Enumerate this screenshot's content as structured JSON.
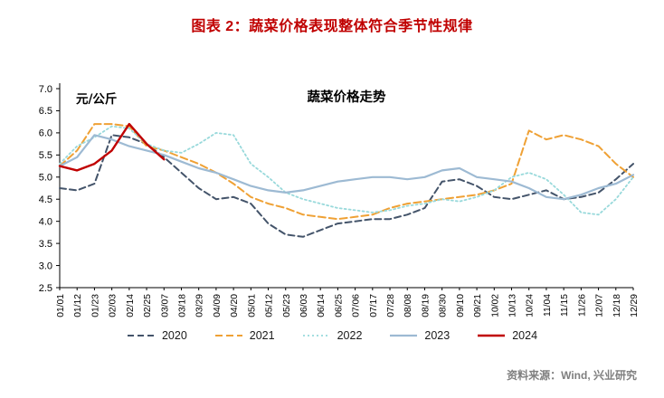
{
  "page": {
    "caption": "图表 2：蔬菜价格表现整体符合季节性规律",
    "source": "资料来源：Wind, 兴业研究"
  },
  "colors": {
    "caption": "#C00000",
    "source": "#7F7F7F",
    "axis": "#000000"
  },
  "chart_data": {
    "type": "line",
    "title": "蔬菜价格走势",
    "unit_label": "元/公斤",
    "xlabel": "",
    "ylabel": "",
    "ylim": [
      2.5,
      7.0
    ],
    "ytick_step": 0.5,
    "grid": false,
    "legend_position": "bottom",
    "categories": [
      "01/01",
      "01/12",
      "01/23",
      "02/03",
      "02/14",
      "02/25",
      "03/07",
      "03/18",
      "03/29",
      "04/09",
      "04/20",
      "05/01",
      "05/12",
      "05/23",
      "06/03",
      "06/14",
      "06/25",
      "07/06",
      "07/17",
      "07/28",
      "08/08",
      "08/19",
      "08/30",
      "09/10",
      "09/21",
      "10/02",
      "10/13",
      "10/24",
      "11/04",
      "11/15",
      "11/26",
      "12/07",
      "12/18",
      "12/29"
    ],
    "series": [
      {
        "name": "2020",
        "color": "#44546A",
        "dash": "7 4",
        "width": 2,
        "values": [
          4.75,
          4.7,
          4.85,
          5.95,
          5.9,
          5.75,
          5.45,
          5.1,
          4.75,
          4.5,
          4.55,
          4.4,
          3.95,
          3.7,
          3.65,
          3.8,
          3.95,
          4.0,
          4.05,
          4.05,
          4.15,
          4.3,
          4.9,
          4.95,
          4.8,
          4.55,
          4.5,
          4.6,
          4.7,
          4.5,
          4.55,
          4.65,
          4.95,
          5.3
        ]
      },
      {
        "name": "2021",
        "color": "#EFA135",
        "dash": "8 4",
        "width": 2,
        "values": [
          5.25,
          5.6,
          6.2,
          6.2,
          6.15,
          5.7,
          5.6,
          5.45,
          5.3,
          5.1,
          4.85,
          4.55,
          4.4,
          4.3,
          4.15,
          4.1,
          4.05,
          4.1,
          4.15,
          4.3,
          4.4,
          4.45,
          4.5,
          4.55,
          4.6,
          4.7,
          4.85,
          6.05,
          5.85,
          5.95,
          5.85,
          5.7,
          5.3,
          5.0
        ]
      },
      {
        "name": "2022",
        "color": "#98D9DB",
        "dash": "2 3",
        "width": 1.8,
        "values": [
          5.3,
          5.7,
          5.9,
          6.15,
          6.1,
          5.75,
          5.6,
          5.55,
          5.75,
          6.0,
          5.95,
          5.3,
          5.0,
          4.65,
          4.5,
          4.4,
          4.3,
          4.25,
          4.2,
          4.25,
          4.35,
          4.4,
          4.5,
          4.45,
          4.55,
          4.7,
          5.0,
          5.1,
          4.95,
          4.6,
          4.2,
          4.15,
          4.5,
          5.0
        ]
      },
      {
        "name": "2023",
        "color": "#9DBAD3",
        "dash": "",
        "width": 2.2,
        "values": [
          5.25,
          5.45,
          5.95,
          5.85,
          5.7,
          5.6,
          5.5,
          5.35,
          5.2,
          5.1,
          4.95,
          4.8,
          4.7,
          4.65,
          4.7,
          4.8,
          4.9,
          4.95,
          5.0,
          5.0,
          4.95,
          5.0,
          5.15,
          5.2,
          5.0,
          4.95,
          4.9,
          4.75,
          4.55,
          4.5,
          4.6,
          4.75,
          4.85,
          5.05
        ]
      },
      {
        "name": "2024",
        "color": "#C00000",
        "dash": "",
        "width": 2.4,
        "values": [
          5.25,
          5.15,
          5.3,
          5.6,
          6.2,
          5.75,
          5.4,
          null,
          null,
          null,
          null,
          null,
          null,
          null,
          null,
          null,
          null,
          null,
          null,
          null,
          null,
          null,
          null,
          null,
          null,
          null,
          null,
          null,
          null,
          null,
          null,
          null,
          null,
          null
        ]
      }
    ]
  }
}
